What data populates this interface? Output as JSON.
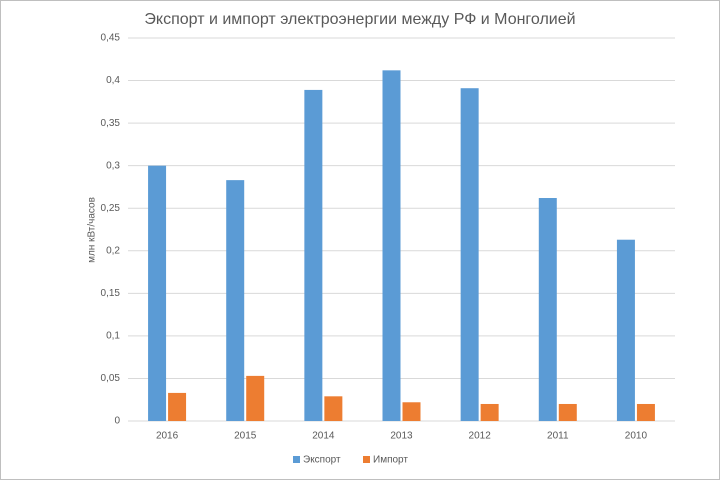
{
  "chart_data": {
    "type": "bar",
    "title": "Экспорт и импорт электроэнергии между РФ и Монголией",
    "y_label": "млн кВт/часов",
    "categories": [
      "2016",
      "2015",
      "2014",
      "2013",
      "2012",
      "2011",
      "2010"
    ],
    "series": [
      {
        "name": "Экспорт",
        "color": "#5b9bd5",
        "values": [
          0.3,
          0.283,
          0.389,
          0.412,
          0.391,
          0.262,
          0.213
        ]
      },
      {
        "name": "Импорт",
        "color": "#ed7d31",
        "values": [
          0.033,
          0.053,
          0.029,
          0.022,
          0.02,
          0.02,
          0.02
        ]
      }
    ],
    "ylim": [
      0,
      0.45
    ],
    "yticks": [
      0,
      {
        "value": 0.05,
        "label": "0,05"
      },
      {
        "value": 0.1,
        "label": "0,1"
      },
      {
        "value": 0.15,
        "label": "0,15"
      },
      {
        "value": 0.2,
        "label": "0,2"
      },
      {
        "value": 0.25,
        "label": "0,25"
      },
      {
        "value": 0.3,
        "label": "0,3"
      },
      {
        "value": 0.35,
        "label": "0,35"
      },
      {
        "value": 0.4,
        "label": "0,4"
      },
      {
        "value": 0.45,
        "label": "0,45"
      }
    ],
    "grid": true,
    "legend": "bottom"
  }
}
